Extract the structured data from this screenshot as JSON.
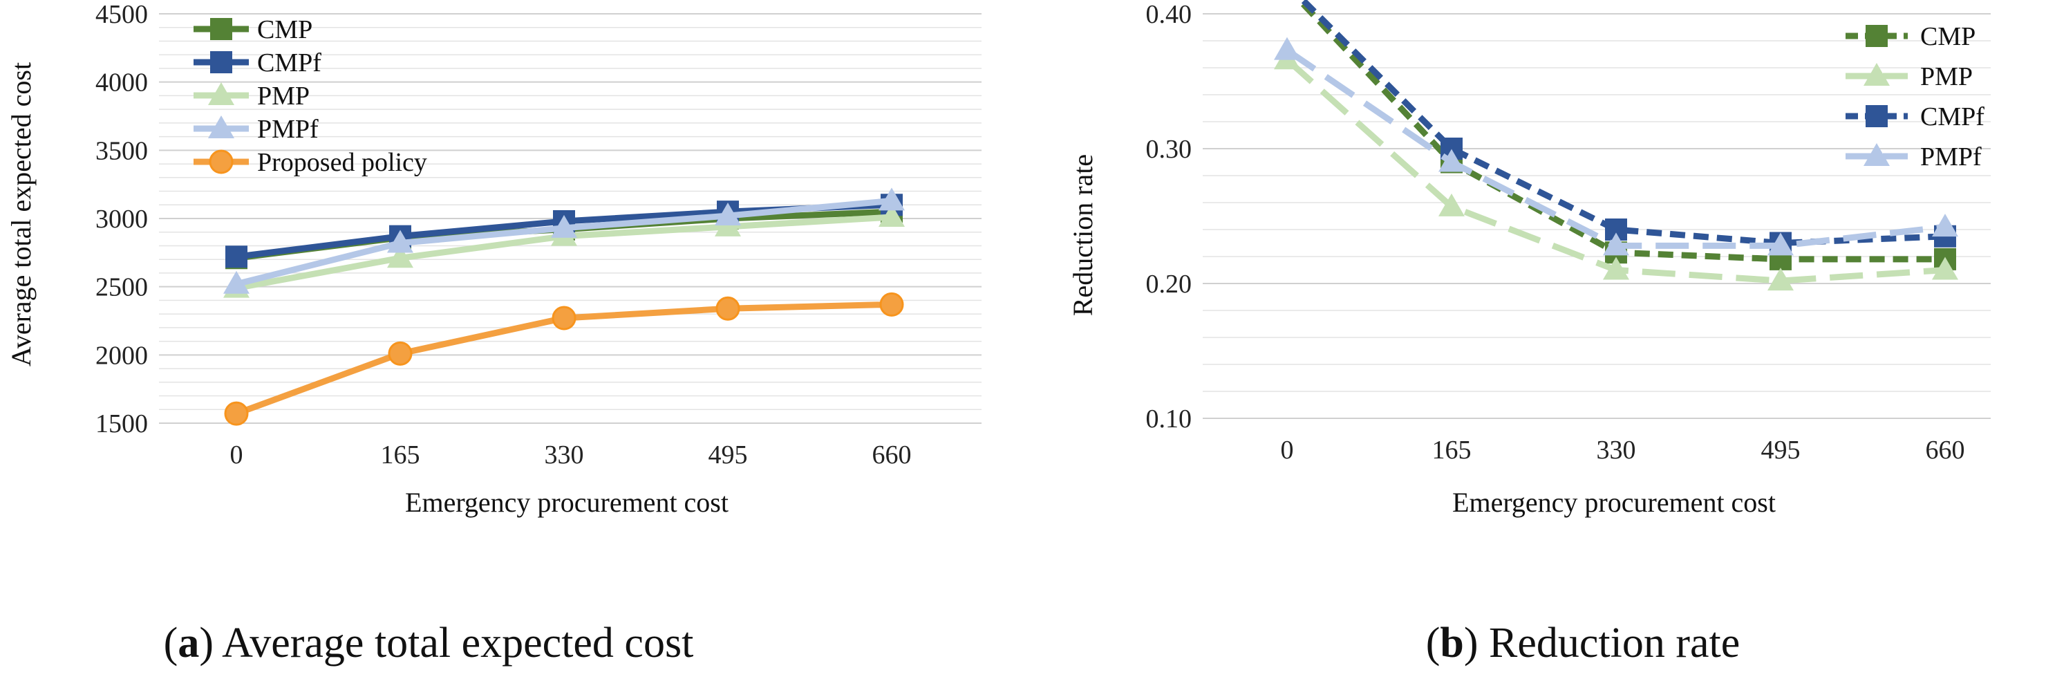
{
  "chart_data": [
    {
      "type": "line",
      "caption_label": "a",
      "caption_text": "Average total expected cost",
      "xlabel": "Emergency procurement cost",
      "ylabel": "Average total expected cost",
      "categories": [
        "0",
        "165",
        "330",
        "495",
        "660"
      ],
      "yticks": [
        "1500",
        "2000",
        "2500",
        "3000",
        "3500",
        "4000",
        "4500"
      ],
      "ylim": [
        1500,
        4500
      ],
      "grid": true,
      "legend_position": "top-left",
      "series": [
        {
          "name": "CMP",
          "values": [
            2710,
            2860,
            2920,
            3000,
            3050
          ],
          "color": "#548235",
          "marker": "square",
          "dash": "solid"
        },
        {
          "name": "CMPf",
          "values": [
            2720,
            2870,
            2980,
            3050,
            3100
          ],
          "color": "#2f5597",
          "marker": "square",
          "dash": "solid"
        },
        {
          "name": "PMP",
          "values": [
            2490,
            2710,
            2870,
            2940,
            3010
          ],
          "color": "#c5e0b4",
          "marker": "triangle",
          "dash": "solid"
        },
        {
          "name": "PMPf",
          "values": [
            2520,
            2820,
            2930,
            3020,
            3130
          ],
          "color": "#b4c7e7",
          "marker": "triangle",
          "dash": "solid"
        },
        {
          "name": "Proposed policy",
          "values": [
            1570,
            2010,
            2270,
            2340,
            2370
          ],
          "color": "#f4a040",
          "marker": "circle",
          "dash": "solid"
        }
      ]
    },
    {
      "type": "line",
      "caption_label": "b",
      "caption_text": "Reduction rate",
      "xlabel": "Emergency procurement cost",
      "ylabel": "Reduction rate",
      "categories": [
        "0",
        "165",
        "330",
        "495",
        "660"
      ],
      "yticks": [
        "0.10",
        "0.20",
        "0.30",
        "0.40"
      ],
      "ylim": [
        0.1,
        0.4
      ],
      "grid": true,
      "legend_position": "top-right",
      "series": [
        {
          "name": "CMP",
          "values": [
            0.42,
            0.29,
            0.223,
            0.218,
            0.218
          ],
          "color": "#548235",
          "marker": "square",
          "dash": "short"
        },
        {
          "name": "PMP",
          "values": [
            0.366,
            0.257,
            0.21,
            0.202,
            0.21
          ],
          "color": "#c5e0b4",
          "marker": "triangle",
          "dash": "long"
        },
        {
          "name": "CMPf",
          "values": [
            0.422,
            0.3,
            0.24,
            0.23,
            0.235
          ],
          "color": "#2f5597",
          "marker": "square",
          "dash": "short"
        },
        {
          "name": "PMPf",
          "values": [
            0.373,
            0.29,
            0.228,
            0.228,
            0.242
          ],
          "color": "#b4c7e7",
          "marker": "triangle",
          "dash": "long"
        }
      ]
    }
  ]
}
